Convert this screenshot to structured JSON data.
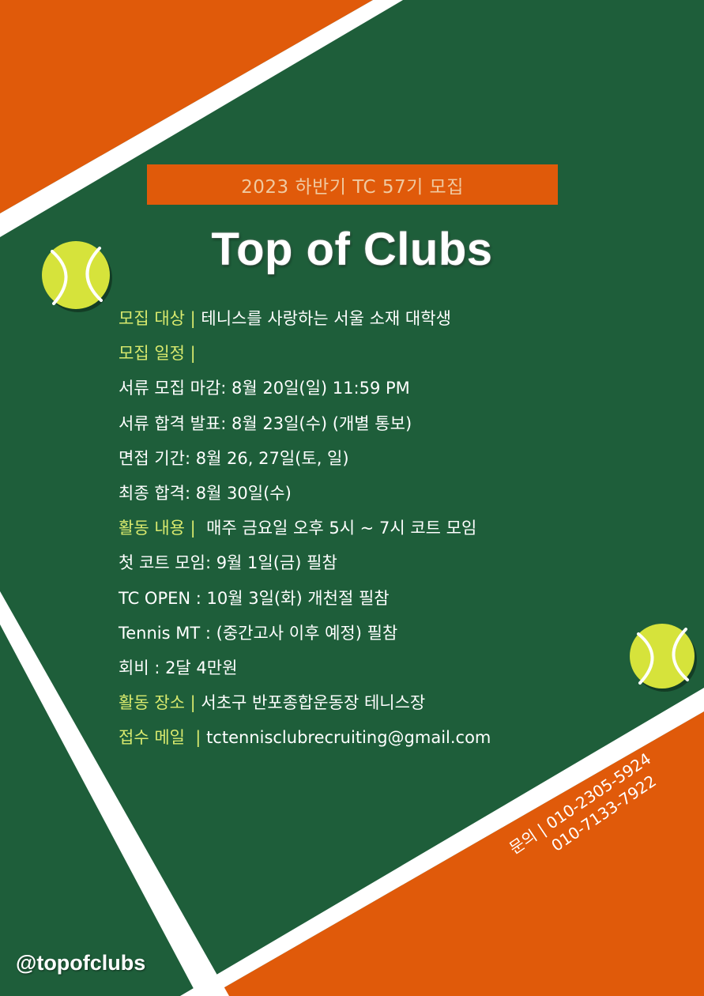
{
  "colors": {
    "court_green": "#1e5e3a",
    "clay_orange": "#e05a0a",
    "line_white": "#ffffff",
    "label_yellow": "#d9ea6e",
    "ball_yellow": "#d6e33b",
    "banner_text": "#f0c9a0"
  },
  "banner": {
    "text": "2023 하반기 TC 57기 모집"
  },
  "title": "Top of Clubs",
  "info": [
    {
      "label": "모집 대상 | ",
      "text": "테니스를 사랑하는 서울 소재 대학생"
    },
    {
      "label": "모집 일정 | ",
      "text": ""
    },
    {
      "label": "",
      "text": "서류 모집 마감: 8월 20일(일) 11:59 PM"
    },
    {
      "label": "",
      "text": "서류 합격 발표: 8월 23일(수) (개별 통보)"
    },
    {
      "label": "",
      "text": "면접 기간: 8월 26, 27일(토, 일)"
    },
    {
      "label": "",
      "text": "최종 합격: 8월 30일(수)"
    },
    {
      "label": "활동 내용 | ",
      "text": " 매주 금요일 오후 5시 ~ 7시 코트 모임"
    },
    {
      "label": "",
      "text": "첫 코트 모임: 9월 1일(금) 필참"
    },
    {
      "label": "",
      "text": "TC OPEN : 10월 3일(화) 개천절 필참"
    },
    {
      "label": "",
      "text": "Tennis MT : (중간고사 이후 예정) 필참"
    },
    {
      "label": "",
      "text": "회비 : 2달 4만원"
    },
    {
      "label": "활동 장소 | ",
      "text": "서초구 반포종합운동장 테니스장"
    },
    {
      "label": "접수 메일  | ",
      "text": "tctennisclubrecruiting@gmail.com"
    }
  ],
  "contact": {
    "line1": "문의 | 010-2305-5924",
    "line2": "010-7133-7922"
  },
  "handle": "@topofclubs",
  "icons": [
    "tennis-ball-icon",
    "tennis-ball-icon"
  ]
}
